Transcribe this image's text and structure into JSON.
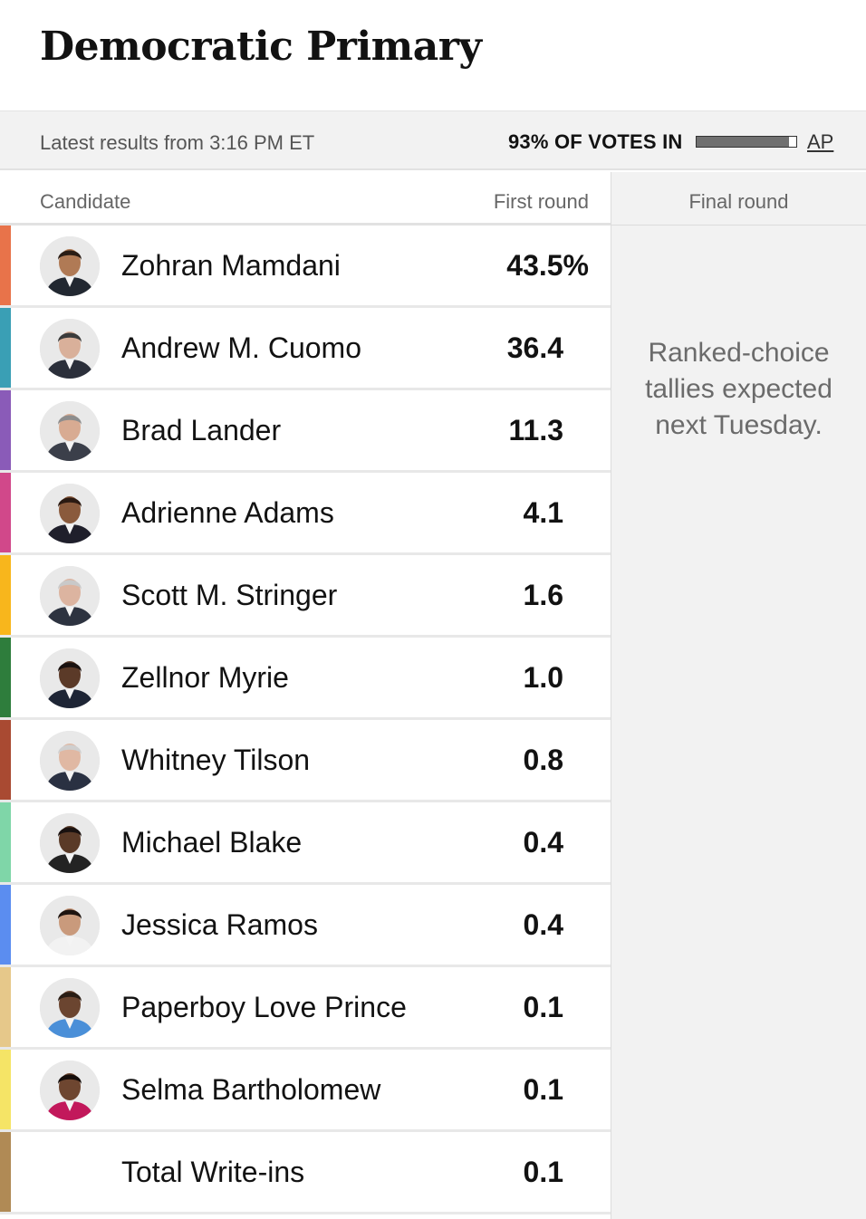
{
  "title": "Democratic Primary",
  "status": {
    "updated": "Latest results from 3:16 PM ET",
    "reporting_label": "93% OF VOTES IN",
    "reporting_fraction": 0.93,
    "source": "AP"
  },
  "columns": {
    "candidate": "Candidate",
    "first_round": "First round",
    "final_round": "Final round"
  },
  "final_round_note": "Ranked-choice tallies expected next Tuesday.",
  "candidates": [
    {
      "name": "Zohran Mamdani",
      "first_round": "43.5%",
      "color": "#e8734a",
      "skin": "#b07a55",
      "hair": "#2a1d15",
      "suit": "#222831",
      "photo": true
    },
    {
      "name": "Andrew M. Cuomo",
      "first_round": "36.4",
      "color": "#3a9fb5",
      "skin": "#d9b09a",
      "hair": "#3b3b3b",
      "suit": "#2b2f3a",
      "photo": true
    },
    {
      "name": "Brad Lander",
      "first_round": "11.3",
      "color": "#8a5bb8",
      "skin": "#d8ab92",
      "hair": "#8d8d8d",
      "suit": "#3b3f4a",
      "photo": true
    },
    {
      "name": "Adrienne Adams",
      "first_round": "4.1",
      "color": "#d1488a",
      "skin": "#8a5a3c",
      "hair": "#2b1a12",
      "suit": "#1f1f2b",
      "photo": true
    },
    {
      "name": "Scott M. Stringer",
      "first_round": "1.6",
      "color": "#f8b61c",
      "skin": "#dcb4a0",
      "hair": "#c9c9c9",
      "suit": "#2d3340",
      "photo": true
    },
    {
      "name": "Zellnor Myrie",
      "first_round": "1.0",
      "color": "#2e7d3c",
      "skin": "#5b3a28",
      "hair": "#1a1210",
      "suit": "#1e2535",
      "photo": true
    },
    {
      "name": "Whitney Tilson",
      "first_round": "0.8",
      "color": "#a94a32",
      "skin": "#e0b8a3",
      "hair": "#cfcfcf",
      "suit": "#2a3142",
      "photo": true
    },
    {
      "name": "Michael Blake",
      "first_round": "0.4",
      "color": "#7fd6a8",
      "skin": "#5a3a27",
      "hair": "#1a1210",
      "suit": "#232323",
      "photo": true
    },
    {
      "name": "Jessica Ramos",
      "first_round": "0.4",
      "color": "#5b8df0",
      "skin": "#c99a7c",
      "hair": "#1e1410",
      "suit": "#f2f2f2",
      "photo": true
    },
    {
      "name": "Paperboy Love Prince",
      "first_round": "0.1",
      "color": "#e6c88a",
      "skin": "#6b4530",
      "hair": "#2a1d15",
      "suit": "#4a8fd8",
      "photo": true
    },
    {
      "name": "Selma Bartholomew",
      "first_round": "0.1",
      "color": "#f5e466",
      "skin": "#6e4630",
      "hair": "#150d0a",
      "suit": "#c2185b",
      "photo": true
    },
    {
      "name": "Total Write-ins",
      "first_round": "0.1",
      "color": "#b08a55",
      "photo": false
    }
  ]
}
